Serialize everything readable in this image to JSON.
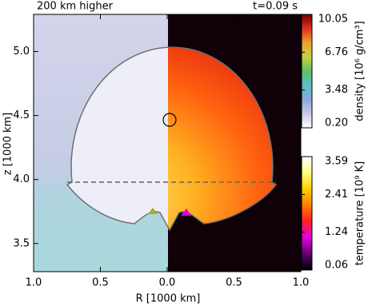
{
  "chart_data": {
    "type": "image",
    "annotations": [
      "200 km higher",
      "t=0.09 s"
    ],
    "xlabel": "R [1000 km]",
    "ylabel": "z [1000 km]",
    "xlim": [
      -1,
      1
    ],
    "ylim": [
      3.28,
      5.29
    ],
    "xticks": [
      {
        "value": -1,
        "label": "1.0"
      },
      {
        "value": -0.5,
        "label": "0.5"
      },
      {
        "value": 0,
        "label": "0.0"
      },
      {
        "value": 0.5,
        "label": "0.5"
      },
      {
        "value": 1,
        "label": "1.0"
      }
    ],
    "yticks": [
      3.5,
      {
        "value": 4,
        "label": "4.0"
      },
      4.5,
      {
        "value": 5,
        "label": "5.0"
      }
    ],
    "colorbars": [
      {
        "label": "density [10⁶ g/cm³]",
        "lim": [
          0.2,
          10.05
        ],
        "ticks": [
          {
            "value": 0.2,
            "label": "0.20"
          },
          3.48,
          6.76,
          10.05
        ],
        "colors": [
          "#ffffff",
          "#c8c8e8",
          "#8ea8dc",
          "#58c0c8",
          "#60c060",
          "#c8d040",
          "#f0a030",
          "#e03020",
          "#700000"
        ]
      },
      {
        "label": "temperature [10⁹ K]",
        "lim": [
          0.06,
          3.59
        ],
        "ticks": [
          0.06,
          1.24,
          2.41,
          3.59
        ],
        "colors": [
          "#000000",
          "#600070",
          "#e000e0",
          "#ff2020",
          "#ff8000",
          "#ffd000",
          "#ffff80",
          "#ffffff"
        ]
      }
    ]
  }
}
